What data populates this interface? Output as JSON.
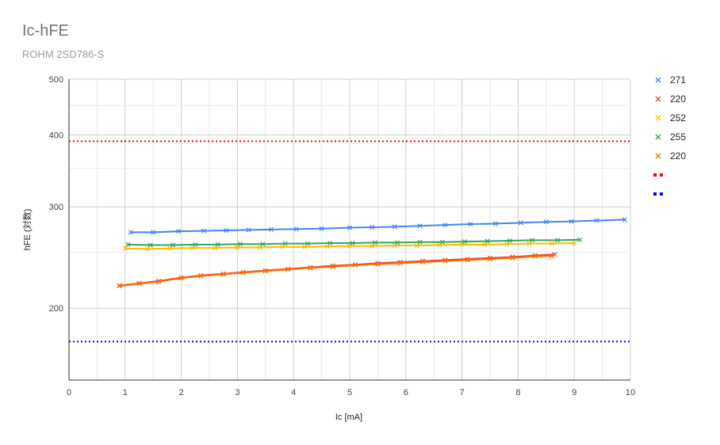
{
  "title": "Ic-hFE",
  "subtitle": "ROHM 2SD786-S",
  "chart_data": {
    "type": "line",
    "title": "Ic-hFE",
    "subtitle": "ROHM 2SD786-S",
    "xlabel": "Ic [mA]",
    "ylabel": "hFE (対数)",
    "xlim": [
      0,
      10
    ],
    "ylim": [
      150,
      500
    ],
    "yscale": "log",
    "x_ticks": [
      "0",
      "1",
      "2",
      "3",
      "4",
      "5",
      "6",
      "7",
      "8",
      "9",
      "10"
    ],
    "y_ticks": [
      "200",
      "300",
      "400",
      "500"
    ],
    "grid": true,
    "legend_position": "right",
    "series": [
      {
        "name": "271",
        "color": "#4285f4",
        "marker": "x",
        "line": true,
        "x": [
          1.1,
          1.5,
          1.95,
          2.4,
          2.8,
          3.2,
          3.6,
          4.05,
          4.5,
          5.0,
          5.4,
          5.8,
          6.25,
          6.7,
          7.15,
          7.6,
          8.05,
          8.5,
          8.95,
          9.4,
          9.9
        ],
        "y": [
          271,
          271,
          272,
          272.5,
          273,
          273.5,
          274,
          274.5,
          275,
          276,
          276.5,
          277,
          278,
          279,
          280,
          280.5,
          281.5,
          282.5,
          283,
          284,
          285
        ]
      },
      {
        "name": "220",
        "color": "#ea4335",
        "marker": "x",
        "line": true,
        "x": [
          0.9,
          1.25,
          1.6,
          2.0,
          2.35,
          2.75,
          3.1,
          3.5,
          3.9,
          4.3,
          4.7,
          5.1,
          5.5,
          5.9,
          6.3,
          6.7,
          7.1,
          7.5,
          7.9,
          8.3,
          8.65
        ],
        "y": [
          219,
          221,
          223,
          226,
          228,
          229.5,
          231,
          232.5,
          234,
          235.5,
          237,
          238,
          239.5,
          240.5,
          241.5,
          242.5,
          243.5,
          244.5,
          245.5,
          247,
          248
        ]
      },
      {
        "name": "252",
        "color": "#fbbc04",
        "marker": "x",
        "line": true,
        "x": [
          1.0,
          1.4,
          1.8,
          2.2,
          2.6,
          3.0,
          3.4,
          3.8,
          4.2,
          4.6,
          5.0,
          5.4,
          5.8,
          6.2,
          6.6,
          7.0,
          7.4,
          7.8,
          8.2,
          8.6,
          9.0
        ],
        "y": [
          254,
          253.5,
          254,
          254.5,
          254.5,
          255,
          255,
          255.5,
          255.5,
          256,
          256.5,
          256.5,
          257,
          257,
          257.5,
          258,
          258,
          258.5,
          259,
          259,
          259.5
        ]
      },
      {
        "name": "255",
        "color": "#34a853",
        "marker": "x",
        "line": true,
        "x": [
          1.05,
          1.45,
          1.85,
          2.25,
          2.65,
          3.05,
          3.45,
          3.85,
          4.25,
          4.65,
          5.05,
          5.45,
          5.85,
          6.25,
          6.65,
          7.05,
          7.45,
          7.85,
          8.25,
          8.7,
          9.1
        ],
        "y": [
          258,
          257.5,
          257.5,
          258,
          258,
          258.5,
          258.5,
          259,
          259,
          259.5,
          259.5,
          260,
          260,
          260.5,
          260.5,
          261,
          261.5,
          262,
          262.5,
          262.5,
          263
        ]
      },
      {
        "name": "220",
        "color": "#ff6d01",
        "marker": "x",
        "line": true,
        "x": [
          0.9,
          1.25,
          1.6,
          2.0,
          2.35,
          2.75,
          3.1,
          3.5,
          3.9,
          4.3,
          4.7,
          5.1,
          5.5,
          5.9,
          6.3,
          6.7,
          7.1,
          7.5,
          7.9,
          8.3,
          8.6
        ],
        "y": [
          218.5,
          220.5,
          222.5,
          225.5,
          227.5,
          229,
          230.5,
          232,
          233.5,
          235,
          236,
          237.5,
          238.5,
          239.5,
          240.5,
          241.5,
          242.5,
          243.5,
          244.5,
          246,
          246.5
        ]
      },
      {
        "name": "",
        "color": "#ff0000",
        "dotted": true,
        "line": true,
        "marker": "none",
        "x": [
          0,
          10
        ],
        "y": [
          390,
          390
        ]
      },
      {
        "name": "",
        "color": "#0000ff",
        "dotted": true,
        "line": true,
        "marker": "none",
        "x": [
          0,
          10
        ],
        "y": [
          175,
          175
        ]
      }
    ]
  }
}
